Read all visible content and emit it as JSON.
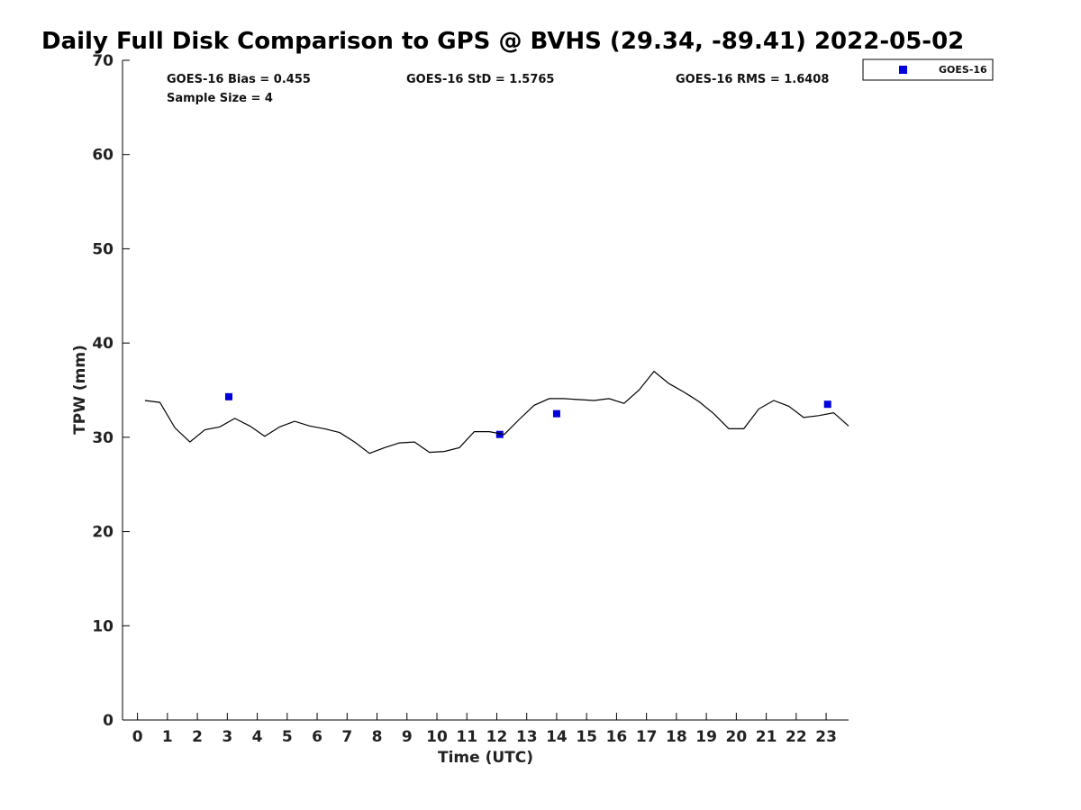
{
  "chart_data": {
    "type": "scatter",
    "title": "Daily Full Disk Comparison to GPS @ BVHS (29.34, -89.41) 2022-05-02",
    "xlabel": "Time (UTC)",
    "ylabel": "TPW (mm)",
    "xlim": [
      -0.5,
      23.75
    ],
    "ylim": [
      0,
      70
    ],
    "xticks": [
      0,
      1,
      2,
      3,
      4,
      5,
      6,
      7,
      8,
      9,
      10,
      11,
      12,
      13,
      14,
      15,
      16,
      17,
      18,
      19,
      20,
      21,
      22,
      23
    ],
    "yticks": [
      0,
      10,
      20,
      30,
      40,
      50,
      60,
      70
    ],
    "grid": false,
    "legend_position": "top-right",
    "stats": {
      "bias": "GOES-16 Bias = 0.455",
      "std": "GOES-16 StD = 1.5765",
      "rms": "GOES-16 RMS = 1.6408",
      "sample_size": "Sample Size = 4"
    },
    "series": [
      {
        "name": "GOES-16",
        "kind": "scatter",
        "marker": "square",
        "color": "#0000dd",
        "points": [
          [
            3.05,
            34.3
          ],
          [
            12.1,
            30.3
          ],
          [
            14.0,
            32.5
          ],
          [
            23.05,
            33.5
          ]
        ]
      },
      {
        "kind": "line",
        "color": "#000000",
        "points": [
          [
            0.25,
            33.9
          ],
          [
            0.75,
            33.7
          ],
          [
            1.25,
            31.0
          ],
          [
            1.75,
            29.5
          ],
          [
            2.25,
            30.8
          ],
          [
            2.75,
            31.1
          ],
          [
            3.25,
            32.0
          ],
          [
            3.75,
            31.2
          ],
          [
            4.25,
            30.1
          ],
          [
            4.75,
            31.1
          ],
          [
            5.25,
            31.7
          ],
          [
            5.75,
            31.2
          ],
          [
            6.25,
            30.9
          ],
          [
            6.75,
            30.5
          ],
          [
            7.25,
            29.5
          ],
          [
            7.75,
            28.3
          ],
          [
            8.25,
            28.9
          ],
          [
            8.75,
            29.4
          ],
          [
            9.25,
            29.5
          ],
          [
            9.75,
            28.4
          ],
          [
            10.25,
            28.5
          ],
          [
            10.75,
            28.9
          ],
          [
            11.25,
            30.6
          ],
          [
            11.75,
            30.6
          ],
          [
            12.25,
            30.3
          ],
          [
            12.75,
            31.9
          ],
          [
            13.25,
            33.4
          ],
          [
            13.75,
            34.1
          ],
          [
            14.25,
            34.1
          ],
          [
            14.75,
            34.0
          ],
          [
            15.25,
            33.9
          ],
          [
            15.75,
            34.1
          ],
          [
            16.25,
            33.6
          ],
          [
            16.75,
            35.0
          ],
          [
            17.25,
            37.0
          ],
          [
            17.75,
            35.7
          ],
          [
            18.25,
            34.8
          ],
          [
            18.75,
            33.8
          ],
          [
            19.25,
            32.5
          ],
          [
            19.75,
            30.9
          ],
          [
            20.25,
            30.9
          ],
          [
            20.75,
            33.0
          ],
          [
            21.25,
            33.9
          ],
          [
            21.75,
            33.3
          ],
          [
            22.25,
            32.1
          ],
          [
            22.75,
            32.3
          ],
          [
            23.25,
            32.6
          ],
          [
            23.75,
            31.2
          ]
        ]
      }
    ]
  }
}
